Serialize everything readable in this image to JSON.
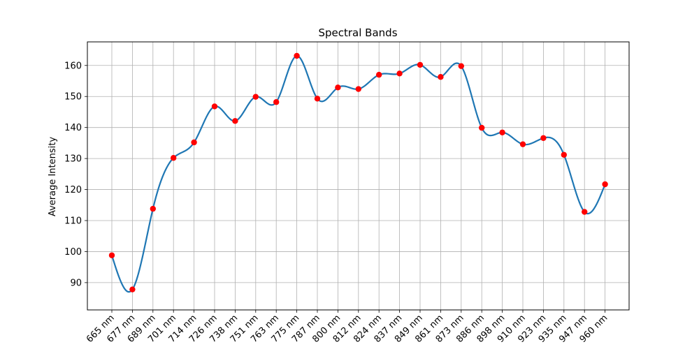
{
  "chart_data": {
    "type": "line",
    "title": "Spectral Bands",
    "xlabel": "",
    "ylabel": "Average Intensity",
    "categories": [
      "665 nm",
      "677 nm",
      "689 nm",
      "701 nm",
      "714 nm",
      "726 nm",
      "738 nm",
      "751 nm",
      "763 nm",
      "775 nm",
      "787 nm",
      "800 nm",
      "812 nm",
      "824 nm",
      "837 nm",
      "849 nm",
      "861 nm",
      "873 nm",
      "886 nm",
      "898 nm",
      "910 nm",
      "923 nm",
      "935 nm",
      "947 nm",
      "960 nm"
    ],
    "values": [
      98.8,
      87.8,
      113.8,
      130.2,
      135.2,
      146.8,
      142.1,
      149.9,
      148.2,
      163.1,
      149.3,
      152.9,
      152.4,
      157.0,
      157.4,
      160.2,
      156.3,
      159.8,
      139.9,
      138.4,
      134.6,
      136.6,
      131.2,
      112.8,
      121.7
    ],
    "ylim": [
      81.2,
      167.6
    ],
    "yticks": [
      90,
      100,
      110,
      120,
      130,
      140,
      150,
      160
    ],
    "grid": true,
    "line_color": "#1f77b4",
    "marker_color": "#ff0000"
  }
}
